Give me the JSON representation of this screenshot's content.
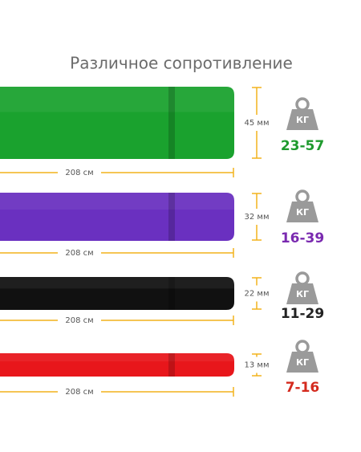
{
  "title": "Различное сопротивление",
  "bands": [
    {
      "width_label": "45 мм",
      "length_label": "208 см",
      "unit": "КГ",
      "range": "23-57",
      "color": "#1aa22e",
      "range_color": "#1f9a2e"
    },
    {
      "width_label": "32 мм",
      "length_label": "208 см",
      "unit": "КГ",
      "range": "16-39",
      "color": "#6a30c0",
      "range_color": "#7a2ab0"
    },
    {
      "width_label": "22 мм",
      "length_label": "208 см",
      "unit": "КГ",
      "range": "11-29",
      "color": "#111111",
      "range_color": "#222222"
    },
    {
      "width_label": "13 мм",
      "length_label": "208 см",
      "unit": "КГ",
      "range": "7-16",
      "color": "#e8161b",
      "range_color": "#d42a1e"
    }
  ]
}
